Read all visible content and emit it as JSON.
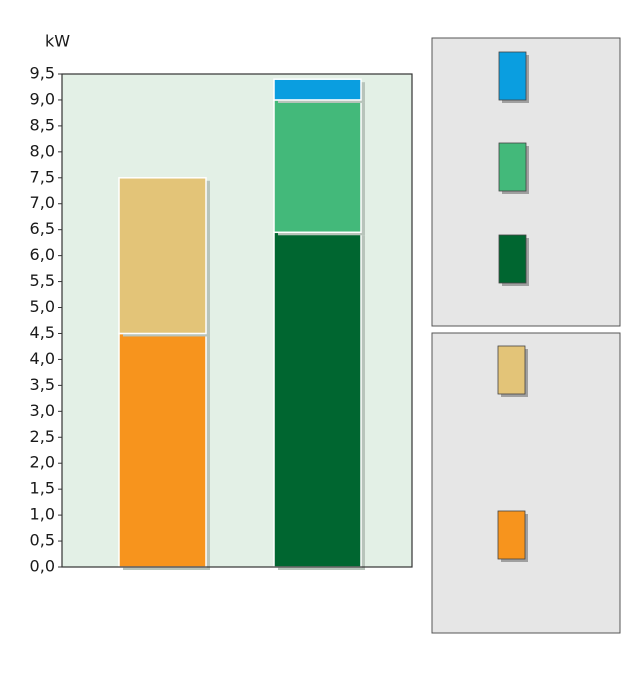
{
  "chart_data": {
    "type": "stacked_bar",
    "y_label": "kW",
    "categories": [
      null,
      null
    ],
    "series": [
      {
        "color": "#f7941d",
        "values": [
          4.5,
          null
        ]
      },
      {
        "color": "#e3c478",
        "values": [
          3.0,
          null
        ]
      },
      {
        "color": "#006630",
        "values": [
          null,
          6.45
        ]
      },
      {
        "color": "#43b97a",
        "values": [
          null,
          2.55
        ]
      },
      {
        "color": "#0a9ee0",
        "values": [
          null,
          0.4
        ]
      }
    ],
    "ylim": [
      0,
      9.5
    ],
    "yticks": [
      {
        "value": 0,
        "label": "0,0"
      },
      {
        "value": 0.5,
        "label": "0,5"
      },
      {
        "value": 1,
        "label": "1,0"
      },
      {
        "value": 1.5,
        "label": "1,5"
      },
      {
        "value": 2,
        "label": "2,0"
      },
      {
        "value": 2.5,
        "label": "2,5"
      },
      {
        "value": 3,
        "label": "3,0"
      },
      {
        "value": 3.5,
        "label": "3,5"
      },
      {
        "value": 4,
        "label": "4,0"
      },
      {
        "value": 4.5,
        "label": "4,5"
      },
      {
        "value": 5,
        "label": "5,0"
      },
      {
        "value": 5.5,
        "label": "5,5"
      },
      {
        "value": 6,
        "label": "6,0"
      },
      {
        "value": 6.5,
        "label": "6,5"
      },
      {
        "value": 7,
        "label": "7,0"
      },
      {
        "value": 7.5,
        "label": "7,5"
      },
      {
        "value": 8,
        "label": "8,0"
      },
      {
        "value": 8.5,
        "label": "8,5"
      },
      {
        "value": 9,
        "label": "9,0"
      },
      {
        "value": 9.5,
        "label": "9,5"
      }
    ]
  }
}
